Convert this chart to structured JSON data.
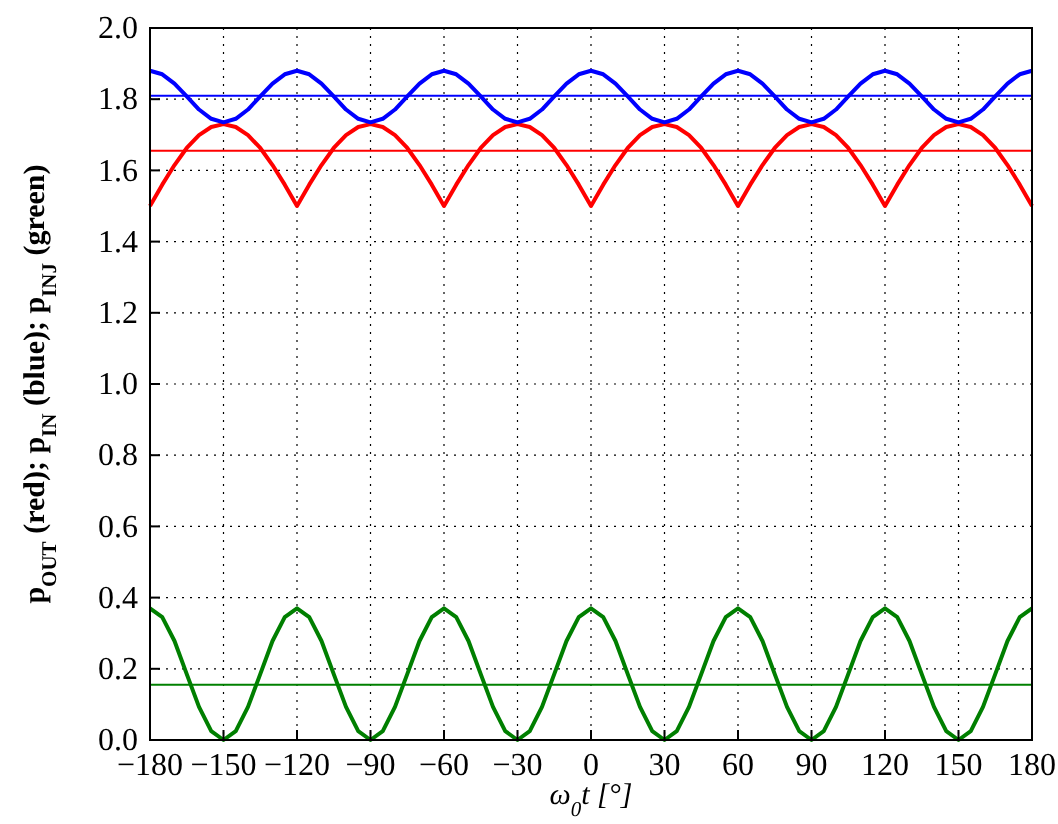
{
  "chart_data": {
    "type": "line",
    "xlabel": "ω$_{0}$t [°]",
    "ylabel": "p$_{OUT}$ (red); p$_{IN}$ (blue); p$_{INJ}$ (green)",
    "x": [
      -180,
      -175,
      -170,
      -165,
      -160,
      -155,
      -150,
      -145,
      -140,
      -135,
      -130,
      -125,
      -120,
      -115,
      -110,
      -105,
      -100,
      -95,
      -90,
      -85,
      -80,
      -75,
      -70,
      -65,
      -60,
      -55,
      -50,
      -45,
      -40,
      -35,
      -30,
      -25,
      -20,
      -15,
      -10,
      -5,
      0,
      5,
      10,
      15,
      20,
      25,
      30,
      35,
      40,
      45,
      50,
      55,
      60,
      65,
      70,
      75,
      80,
      85,
      90,
      95,
      100,
      105,
      110,
      115,
      120,
      125,
      130,
      135,
      140,
      145,
      150,
      155,
      160,
      165,
      170,
      175,
      180
    ],
    "series": [
      {
        "color": "#ff0000",
        "values": [
          1.5,
          1.56,
          1.615,
          1.663,
          1.699,
          1.722,
          1.73,
          1.722,
          1.699,
          1.663,
          1.615,
          1.56,
          1.5,
          1.56,
          1.615,
          1.663,
          1.699,
          1.722,
          1.73,
          1.722,
          1.699,
          1.663,
          1.615,
          1.56,
          1.5,
          1.56,
          1.615,
          1.663,
          1.699,
          1.722,
          1.73,
          1.722,
          1.699,
          1.663,
          1.615,
          1.56,
          1.5,
          1.56,
          1.615,
          1.663,
          1.699,
          1.722,
          1.73,
          1.722,
          1.699,
          1.663,
          1.615,
          1.56,
          1.5,
          1.56,
          1.615,
          1.663,
          1.699,
          1.722,
          1.73,
          1.722,
          1.699,
          1.663,
          1.615,
          1.56,
          1.5,
          1.56,
          1.615,
          1.663,
          1.699,
          1.722,
          1.73,
          1.722,
          1.699,
          1.663,
          1.615,
          1.56,
          1.5
        ]
      },
      {
        "color": "#0000ff",
        "values": [
          1.88,
          1.87,
          1.844,
          1.808,
          1.771,
          1.745,
          1.735,
          1.745,
          1.771,
          1.808,
          1.844,
          1.87,
          1.88,
          1.87,
          1.844,
          1.808,
          1.771,
          1.745,
          1.735,
          1.745,
          1.771,
          1.808,
          1.844,
          1.87,
          1.88,
          1.87,
          1.844,
          1.808,
          1.771,
          1.745,
          1.735,
          1.745,
          1.771,
          1.808,
          1.844,
          1.87,
          1.88,
          1.87,
          1.844,
          1.808,
          1.771,
          1.745,
          1.735,
          1.745,
          1.771,
          1.808,
          1.844,
          1.87,
          1.88,
          1.87,
          1.844,
          1.808,
          1.771,
          1.745,
          1.735,
          1.745,
          1.771,
          1.808,
          1.844,
          1.87,
          1.88,
          1.87,
          1.844,
          1.808,
          1.771,
          1.745,
          1.735,
          1.745,
          1.771,
          1.808,
          1.844,
          1.87,
          1.88
        ]
      },
      {
        "color": "#007f00",
        "values": [
          0.37,
          0.345,
          0.278,
          0.185,
          0.093,
          0.025,
          0,
          0.025,
          0.093,
          0.185,
          0.278,
          0.345,
          0.37,
          0.345,
          0.278,
          0.185,
          0.093,
          0.025,
          0,
          0.025,
          0.093,
          0.185,
          0.278,
          0.345,
          0.37,
          0.345,
          0.278,
          0.185,
          0.093,
          0.025,
          0,
          0.025,
          0.093,
          0.185,
          0.278,
          0.345,
          0.37,
          0.345,
          0.278,
          0.185,
          0.093,
          0.025,
          0,
          0.025,
          0.093,
          0.185,
          0.278,
          0.345,
          0.37,
          0.345,
          0.278,
          0.185,
          0.093,
          0.025,
          0,
          0.025,
          0.093,
          0.185,
          0.278,
          0.345,
          0.37,
          0.345,
          0.278,
          0.185,
          0.093,
          0.025,
          0,
          0.025,
          0.093,
          0.185,
          0.278,
          0.345,
          0.37
        ]
      }
    ],
    "ref_lines": [
      {
        "axis": "y",
        "value": 1.81,
        "color": "#0000ff"
      },
      {
        "axis": "y",
        "value": 1.655,
        "color": "#ff0000"
      },
      {
        "axis": "y",
        "value": 0.155,
        "color": "#008000"
      }
    ],
    "xlim": [
      -180,
      180
    ],
    "xticks": [
      {
        "value": -180,
        "label": "−180"
      },
      {
        "value": -150,
        "label": "−150"
      },
      {
        "value": -120,
        "label": "−120"
      },
      {
        "value": -90,
        "label": "−90"
      },
      {
        "value": -60,
        "label": "−60"
      },
      {
        "value": -30,
        "label": "−30"
      },
      0,
      30,
      60,
      90,
      120,
      150,
      180
    ],
    "ylim": [
      0,
      2
    ],
    "yticks": [
      {
        "value": 0,
        "label": "0.0"
      },
      0.2,
      0.4,
      0.6,
      0.8,
      {
        "value": 1,
        "label": "1.0"
      },
      1.2,
      1.4,
      1.6,
      1.8,
      {
        "value": 2,
        "label": "2.0"
      }
    ],
    "grid": true,
    "line_style": "solid",
    "marker": "none"
  }
}
